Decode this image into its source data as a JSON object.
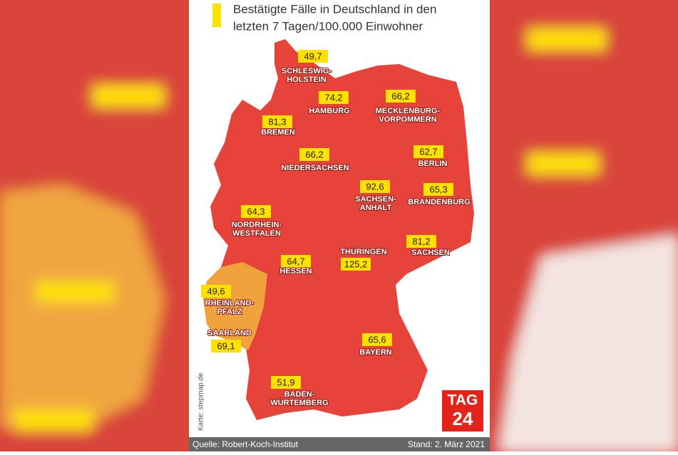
{
  "title": {
    "lines": [
      "Bestätigte Fälle in Deutschland in den",
      "letzten 7 Tagen/100.000 Einwohner"
    ]
  },
  "states": [
    {
      "name": [
        "SCHLESWIG-",
        "HOLSTEIN"
      ],
      "value": "49,7"
    },
    {
      "name": [
        "HAMBURG"
      ],
      "value": "74,2"
    },
    {
      "name": [
        "MECKLENBURG-",
        "VORPOMMERN"
      ],
      "value": "66,2"
    },
    {
      "name": [
        "BREMEN"
      ],
      "value": "81,3"
    },
    {
      "name": [
        "NIEDERSACHSEN"
      ],
      "value": "66,2"
    },
    {
      "name": [
        "BERLIN"
      ],
      "value": "62,7"
    },
    {
      "name": [
        "SACHSEN-",
        "ANHALT"
      ],
      "value": "92,6"
    },
    {
      "name": [
        "BRANDENBURG"
      ],
      "value": "65,3"
    },
    {
      "name": [
        "NORDRHEIN-",
        "WESTFALEN"
      ],
      "value": "64,3"
    },
    {
      "name": [
        "SACHSEN"
      ],
      "value": "81,2"
    },
    {
      "name": [
        "THÜRINGEN"
      ],
      "value": "125,2"
    },
    {
      "name": [
        "HESSEN"
      ],
      "value": "64,7"
    },
    {
      "name": [
        "RHEINLAND-",
        "PFALZ"
      ],
      "value": "49,6"
    },
    {
      "name": [
        "SAARLAND"
      ],
      "value": "69,1"
    },
    {
      "name": [
        "BAYERN"
      ],
      "value": "65,6"
    },
    {
      "name": [
        "BADEN-",
        "WÜRTEMBERG"
      ],
      "value": "51,9"
    }
  ],
  "credit": "Karte: stepmap.de",
  "logo": [
    "TAG",
    "24"
  ],
  "footer": {
    "source": "Quelle: Robert-Koch-Institut",
    "date": "Stand: 2. März 2021"
  }
}
